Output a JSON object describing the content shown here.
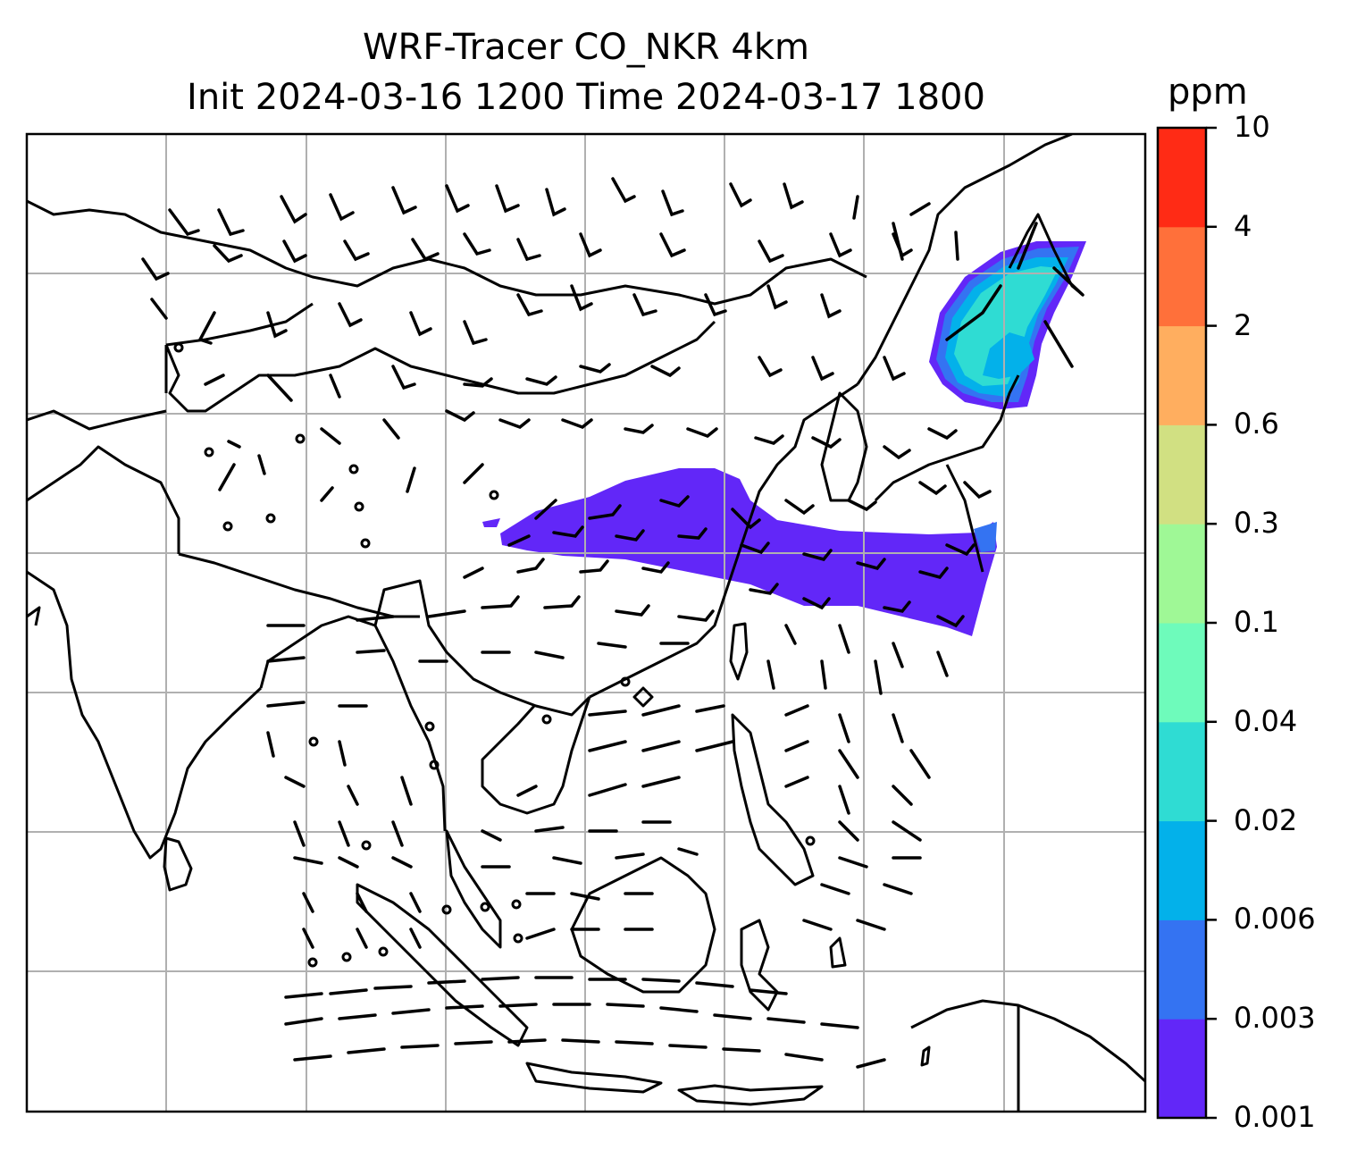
{
  "figure": {
    "title_line1": "WRF-Tracer CO_NKR 4km",
    "title_line2": "Init 2024-03-16 1200 Time 2024-03-17 1800"
  },
  "map": {
    "type": "filled-contour map with wind barbs and coastlines",
    "gridlines": true,
    "gridline_color": "#b0b0b0",
    "coastline_color": "#000000",
    "background": "#ffffff",
    "plumes": [
      {
        "description": "long east-west band",
        "level": "0.001-0.003"
      },
      {
        "description": "northeast patch",
        "levels": [
          "0.001-0.003",
          "0.003-0.006",
          "0.006-0.02",
          "0.02-0.04"
        ]
      }
    ]
  },
  "colorbar": {
    "unit": "ppm",
    "ticks": [
      "0.001",
      "0.003",
      "0.006",
      "0.02",
      "0.04",
      "0.1",
      "0.3",
      "0.6",
      "2",
      "4",
      "10"
    ],
    "colors": [
      "#6227f8",
      "#3473f2",
      "#03b1ea",
      "#2fdcd3",
      "#6efbbb",
      "#9ff896",
      "#d1e082",
      "#ffae5f",
      "#ff703a",
      "#ff2b15"
    ]
  }
}
